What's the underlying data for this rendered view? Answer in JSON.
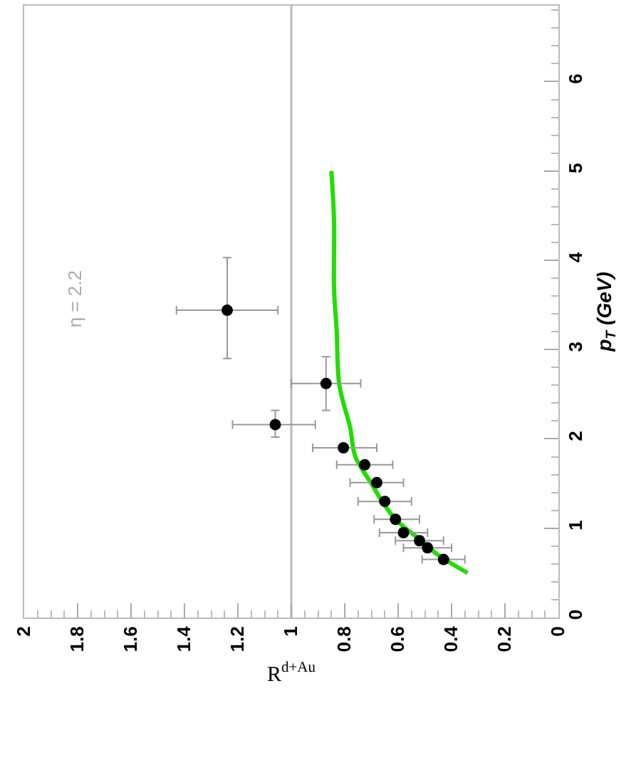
{
  "chart_data": {
    "type": "scatter",
    "xlabel": "R$^{d+Au}$",
    "ylabel": "p$_{T}$ (GeV)",
    "xlim": [
      2,
      0
    ],
    "xticks": [
      0,
      0.2,
      0.4,
      0.6,
      0.8,
      1,
      1.2,
      1.4,
      1.6,
      1.8,
      2
    ],
    "ylim": [
      0,
      6.85
    ],
    "yticks": [
      0,
      1,
      2,
      3,
      4,
      5,
      6
    ],
    "grid": false,
    "annotations": [
      "η = 2.2"
    ],
    "ref_lines": [
      {
        "axis": "x",
        "value": 1,
        "color": "#bbbbbb"
      }
    ],
    "series": [
      {
        "color": "#000000",
        "marker": "circle",
        "x": [
          1.24,
          1.06,
          0.87,
          0.805,
          0.725,
          0.68,
          0.65,
          0.61,
          0.58,
          0.52,
          0.49,
          0.43
        ],
        "values": [
          3.44,
          2.16,
          2.62,
          1.9,
          1.71,
          1.51,
          1.3,
          1.1,
          0.95,
          0.86,
          0.78,
          0.65
        ],
        "errors": [
          [
            2.9,
            4.03
          ],
          [
            2.02,
            2.32
          ],
          [
            2.32,
            2.92
          ],
          null,
          null,
          null,
          null,
          null,
          null,
          null,
          null,
          null
        ],
        "xerrors": [
          [
            1.05,
            1.43
          ],
          [
            0.91,
            1.22
          ],
          [
            0.74,
            1.0
          ],
          [
            0.68,
            0.92
          ],
          [
            0.62,
            0.83
          ],
          [
            0.58,
            0.78
          ],
          [
            0.55,
            0.75
          ],
          [
            0.52,
            0.69
          ],
          [
            0.49,
            0.67
          ],
          [
            0.43,
            0.61
          ],
          [
            0.4,
            0.58
          ],
          [
            0.35,
            0.51
          ]
        ]
      },
      {
        "type": "line",
        "color": "#22dd00",
        "marker": "none",
        "line_style": "solid",
        "x": [
          0.34,
          0.45,
          0.53,
          0.61,
          0.66,
          0.7,
          0.76,
          0.78,
          0.82,
          0.83,
          0.84,
          0.84,
          0.85
        ],
        "values": [
          0.5,
          0.7,
          0.9,
          1.1,
          1.3,
          1.5,
          1.8,
          2.13,
          2.6,
          3.2,
          3.7,
          4.44,
          5.0
        ]
      }
    ]
  }
}
